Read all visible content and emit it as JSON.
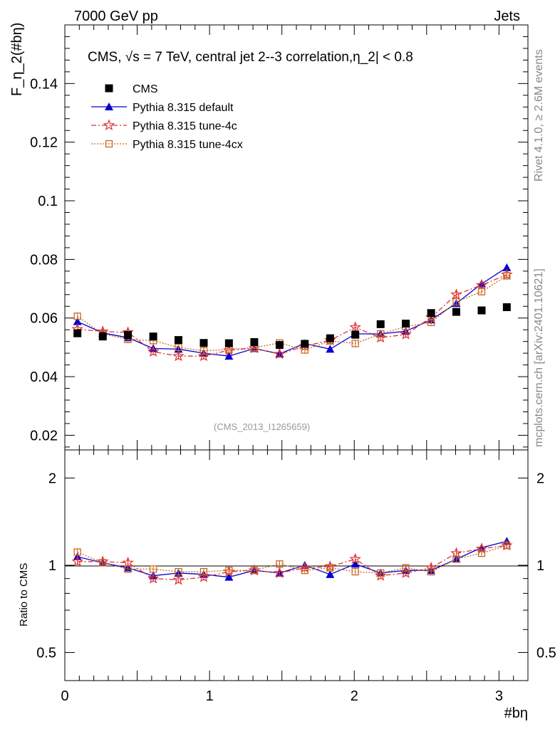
{
  "header": {
    "left": "7000 GeV pp",
    "right": "Jets"
  },
  "side_labels": {
    "rivet": "Rivet 4.1.0, ≥ 2.6M events",
    "mcplots": "mcplots.cern.ch [arXiv:2401.10621]"
  },
  "analysis_id": "(CMS_2013_I1265659)",
  "colors": {
    "cms": "#000000",
    "default": "#0000cc",
    "tune4c": "#dd3333",
    "tune4cx": "#cc6622"
  },
  "chart_data": [
    {
      "type": "scatter",
      "title": "CMS, √s = 7 TeV, central jet 2--3 correlation,η_2| < 0.8",
      "xlabel": "#bη",
      "ylabel": "F_η_2(#bη)",
      "xlim": [
        0,
        3.2
      ],
      "ylim": [
        0.015,
        0.16
      ],
      "yticks": [
        0.02,
        0.04,
        0.06,
        0.08,
        0.1,
        0.12,
        0.14
      ],
      "ytick_labels": [
        "0.02",
        "0.04",
        "0.06",
        "0.08",
        "0.1",
        "0.12",
        "0.14"
      ],
      "legend": [
        "CMS",
        "Pythia 8.315 default",
        "Pythia 8.315 tune-4c",
        "Pythia 8.315 tune-4cx"
      ],
      "legend_position": "top-left",
      "x": [
        0.087,
        0.262,
        0.436,
        0.611,
        0.785,
        0.96,
        1.134,
        1.309,
        1.484,
        1.658,
        1.833,
        2.007,
        2.182,
        2.356,
        2.531,
        2.705,
        2.88,
        3.054
      ],
      "series": [
        {
          "name": "CMS",
          "marker": "square",
          "values": [
            0.0548,
            0.0537,
            0.0542,
            0.0537,
            0.0525,
            0.0515,
            0.0514,
            0.0518,
            0.0508,
            0.0512,
            0.0531,
            0.0543,
            0.0579,
            0.0581,
            0.0617,
            0.0621,
            0.0626,
            0.0637
          ]
        },
        {
          "name": "Pythia 8.315 default",
          "marker": "triangle",
          "values": [
            0.0588,
            0.0549,
            0.0533,
            0.0496,
            0.0494,
            0.048,
            0.047,
            0.0496,
            0.0478,
            0.0513,
            0.0494,
            0.0546,
            0.0546,
            0.0555,
            0.0594,
            0.065,
            0.0717,
            0.0772
          ]
        },
        {
          "name": "Pythia 8.315 tune-4c",
          "marker": "star",
          "values": [
            0.0562,
            0.0554,
            0.0551,
            0.0485,
            0.047,
            0.047,
            0.049,
            0.0497,
            0.0477,
            0.0504,
            0.0524,
            0.0568,
            0.0533,
            0.0544,
            0.0602,
            0.068,
            0.0712,
            0.0748
          ]
        },
        {
          "name": "Pythia 8.315 tune-4cx",
          "marker": "open-square",
          "values": [
            0.0606,
            0.0546,
            0.0527,
            0.0523,
            0.05,
            0.0488,
            0.0493,
            0.0499,
            0.0515,
            0.0491,
            0.0522,
            0.0513,
            0.0546,
            0.0571,
            0.0585,
            0.0655,
            0.069,
            0.0744
          ]
        }
      ]
    },
    {
      "type": "scatter",
      "title": "",
      "xlabel": "#bη",
      "ylabel": "Ratio to CMS",
      "xlim": [
        0,
        3.2
      ],
      "ylim": [
        0.4,
        2.5
      ],
      "yscale": "log",
      "yticks": [
        0.5,
        1,
        2
      ],
      "ytick_labels": [
        "0.5",
        "1",
        "2"
      ],
      "xticks": [
        0,
        1,
        2,
        3
      ],
      "xtick_labels": [
        "0",
        "1",
        "2",
        "3"
      ],
      "reference_line": 1,
      "x": [
        0.087,
        0.262,
        0.436,
        0.611,
        0.785,
        0.96,
        1.134,
        1.309,
        1.484,
        1.658,
        1.833,
        2.007,
        2.182,
        2.356,
        2.531,
        2.705,
        2.88,
        3.054
      ],
      "series": [
        {
          "name": "Pythia 8.315 default",
          "marker": "triangle",
          "values": [
            1.07,
            1.02,
            0.98,
            0.92,
            0.94,
            0.93,
            0.91,
            0.96,
            0.94,
            1.0,
            0.93,
            1.01,
            0.94,
            0.96,
            0.96,
            1.05,
            1.15,
            1.21
          ]
        },
        {
          "name": "Pythia 8.315 tune-4c",
          "marker": "star",
          "values": [
            1.03,
            1.03,
            1.02,
            0.9,
            0.89,
            0.91,
            0.95,
            0.96,
            0.94,
            0.98,
            0.99,
            1.05,
            0.92,
            0.94,
            0.98,
            1.1,
            1.14,
            1.17
          ]
        },
        {
          "name": "Pythia 8.315 tune-4cx",
          "marker": "open-square",
          "values": [
            1.11,
            1.02,
            0.97,
            0.97,
            0.95,
            0.95,
            0.96,
            0.96,
            1.01,
            0.96,
            0.98,
            0.95,
            0.94,
            0.98,
            0.95,
            1.05,
            1.1,
            1.17
          ]
        }
      ]
    }
  ]
}
